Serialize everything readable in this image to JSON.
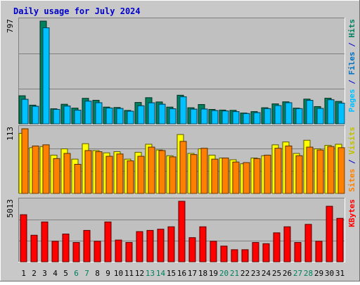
{
  "chart_data": {
    "type": "bar",
    "title": "Daily usage for July 2024",
    "categories": [
      "1",
      "2",
      "3",
      "4",
      "5",
      "6",
      "7",
      "8",
      "9",
      "10",
      "11",
      "12",
      "13",
      "14",
      "15",
      "16",
      "17",
      "18",
      "19",
      "20",
      "21",
      "22",
      "23",
      "24",
      "25",
      "26",
      "27",
      "28",
      "29",
      "30",
      "31"
    ],
    "weekend_days": [
      "6",
      "7",
      "13",
      "14",
      "20",
      "21",
      "27",
      "28"
    ],
    "panels": [
      {
        "id": "hits-files-pages",
        "max_label": "797",
        "ymax": 797,
        "right_label_parts": [
          {
            "text": "Pages",
            "color": "#00c0ff"
          },
          {
            "text": " / ",
            "color": "#0000cc"
          },
          {
            "text": "Files",
            "color": "#0070c0"
          },
          {
            "text": " / ",
            "color": "#0000cc"
          },
          {
            "text": "Hits",
            "color": "#008060"
          }
        ],
        "series": [
          {
            "name": "Hits",
            "color": "#00805c",
            "values": [
              218,
              145,
              797,
              117,
              152,
              122,
              198,
              183,
              130,
              127,
              104,
              166,
              203,
              170,
              130,
              222,
              125,
              150,
              112,
              107,
              105,
              84,
              95,
              125,
              155,
              171,
              122,
              192,
              134,
              199,
              174
            ]
          },
          {
            "name": "Files",
            "color": "#0070c0",
            "values": [
              190,
              136,
              745,
              112,
              138,
              106,
              176,
              164,
              123,
              119,
              98,
              140,
              163,
              152,
              117,
              210,
              114,
              115,
              103,
              100,
              95,
              80,
              87,
              118,
              142,
              164,
              118,
              182,
              120,
              187,
              161
            ]
          },
          {
            "name": "Pages",
            "color": "#00c0ff",
            "values": [
              190,
              136,
              745,
              112,
              138,
              106,
              176,
              164,
              123,
              119,
              98,
              140,
              163,
              152,
              117,
              210,
              114,
              115,
              103,
              100,
              95,
              80,
              87,
              118,
              142,
              164,
              118,
              182,
              120,
              187,
              161
            ]
          }
        ]
      },
      {
        "id": "visits-sites",
        "max_label": "113",
        "ymax": 113,
        "right_label_parts": [
          {
            "text": "Sites",
            "color": "#ff8000"
          },
          {
            "text": " / ",
            "color": "#0000cc"
          },
          {
            "text": "Visits",
            "color": "#c0c000"
          }
        ],
        "series": [
          {
            "name": "Visits",
            "color": "#ffff00",
            "values": [
              105,
              80,
              82,
              67,
              78,
              60,
              87,
              75,
              71,
              73,
              60,
              72,
              86,
              76,
              66,
              103,
              70,
              78,
              67,
              62,
              59,
              52,
              62,
              66,
              85,
              90,
              70,
              93,
              78,
              84,
              86
            ]
          },
          {
            "name": "Sites",
            "color": "#ff8000",
            "values": [
              113,
              83,
              85,
              61,
              70,
              51,
              75,
              73,
              65,
              69,
              57,
              65,
              81,
              75,
              64,
              91,
              68,
              79,
              60,
              62,
              55,
              54,
              61,
              67,
              79,
              83,
              66,
              81,
              76,
              82,
              80
            ]
          }
        ]
      },
      {
        "id": "kbytes",
        "max_label": "5013",
        "ymax": 5013,
        "right_label_parts": [
          {
            "text": "KBytes",
            "color": "#ff0000"
          }
        ],
        "series": [
          {
            "name": "KBytes",
            "color": "#ff0000",
            "values": [
              3900,
              2200,
              3300,
              1700,
              2300,
              1600,
              2600,
              1700,
              3300,
              1800,
              1600,
              2500,
              2600,
              2700,
              2900,
              5013,
              2000,
              2900,
              1700,
              1300,
              1000,
              1000,
              1600,
              1500,
              2400,
              2900,
              1600,
              3100,
              1700,
              4600,
              3600
            ]
          }
        ]
      }
    ]
  }
}
